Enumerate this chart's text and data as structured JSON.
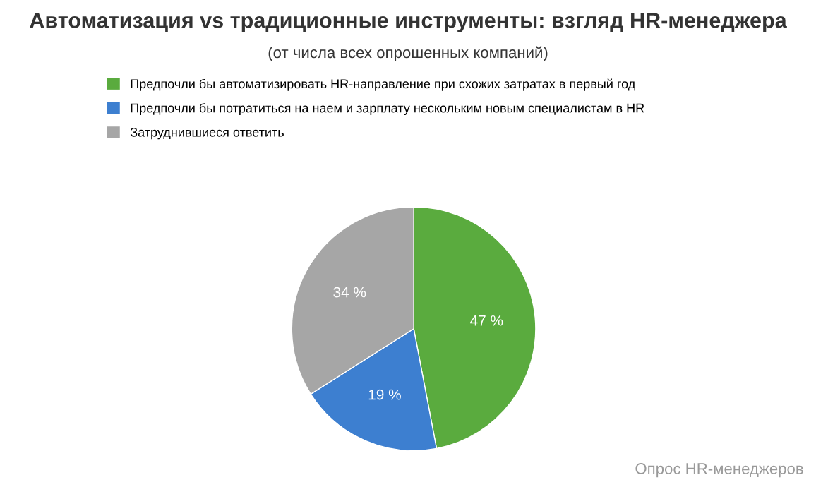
{
  "chart_data": {
    "type": "pie",
    "title": "Автоматизация vs традиционные инструменты: взгляд HR-менеджера",
    "subtitle": "(от числа всех опрошенных компаний)",
    "categories": [
      "Предпочли бы автоматизировать HR-направление при схожих затратах в первый год",
      "Предпочли бы потратиться на наем и зарплату нескольким новым специалистам в HR",
      "Затруднившиеся ответить"
    ],
    "values": [
      47,
      19,
      34
    ],
    "colors": [
      "#5aab3e",
      "#3d7fd0",
      "#a6a6a6"
    ],
    "value_labels": [
      "47 %",
      "19 %",
      "34 %"
    ],
    "legend": "top",
    "annotations": [
      "Опрос HR-менеджеров"
    ]
  }
}
